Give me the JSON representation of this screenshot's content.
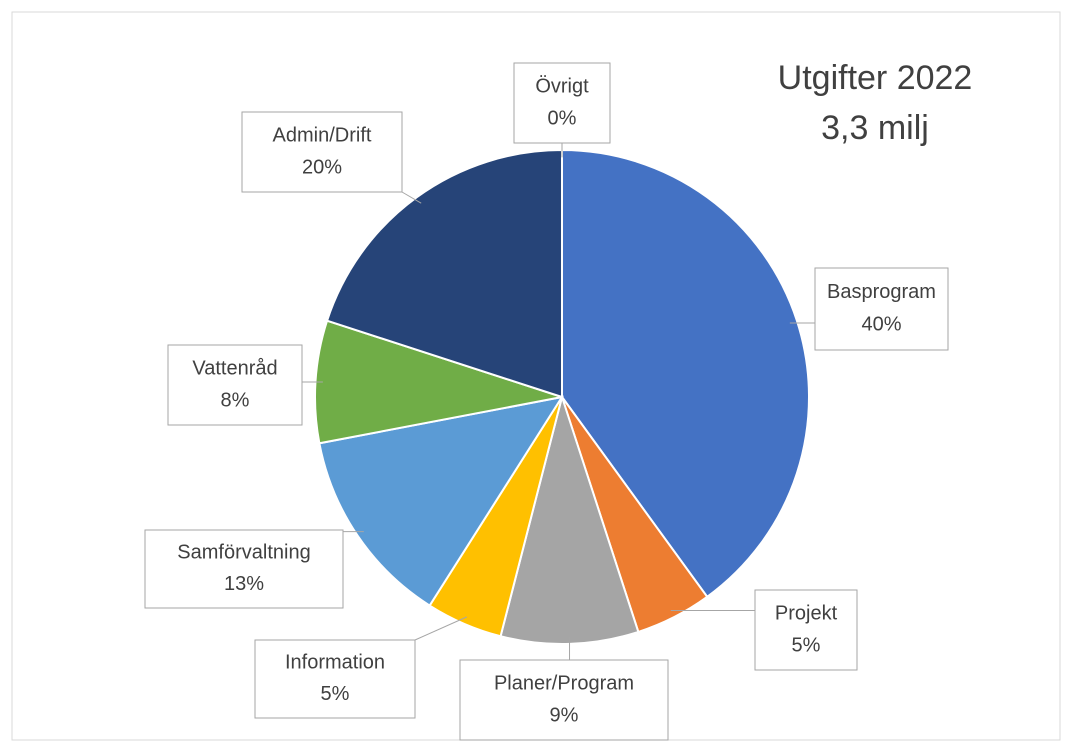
{
  "chart_data": {
    "type": "pie",
    "title": "Utgifter 2022",
    "subtitle": "3,3 milj",
    "categories": [
      "Basprogram",
      "Projekt",
      "Planer/Program",
      "Information",
      "Samförvaltning",
      "Vattenråd",
      "Admin/Drift",
      "Övrigt"
    ],
    "values": [
      40,
      5,
      9,
      5,
      13,
      8,
      20,
      0
    ],
    "value_labels": [
      "40%",
      "5%",
      "9%",
      "5%",
      "13%",
      "8%",
      "20%",
      "0%"
    ],
    "colors": [
      "#4472c4",
      "#ed7d31",
      "#a5a5a5",
      "#ffc000",
      "#5b9bd5",
      "#70ad47",
      "#264478",
      "#9e480e"
    ]
  }
}
